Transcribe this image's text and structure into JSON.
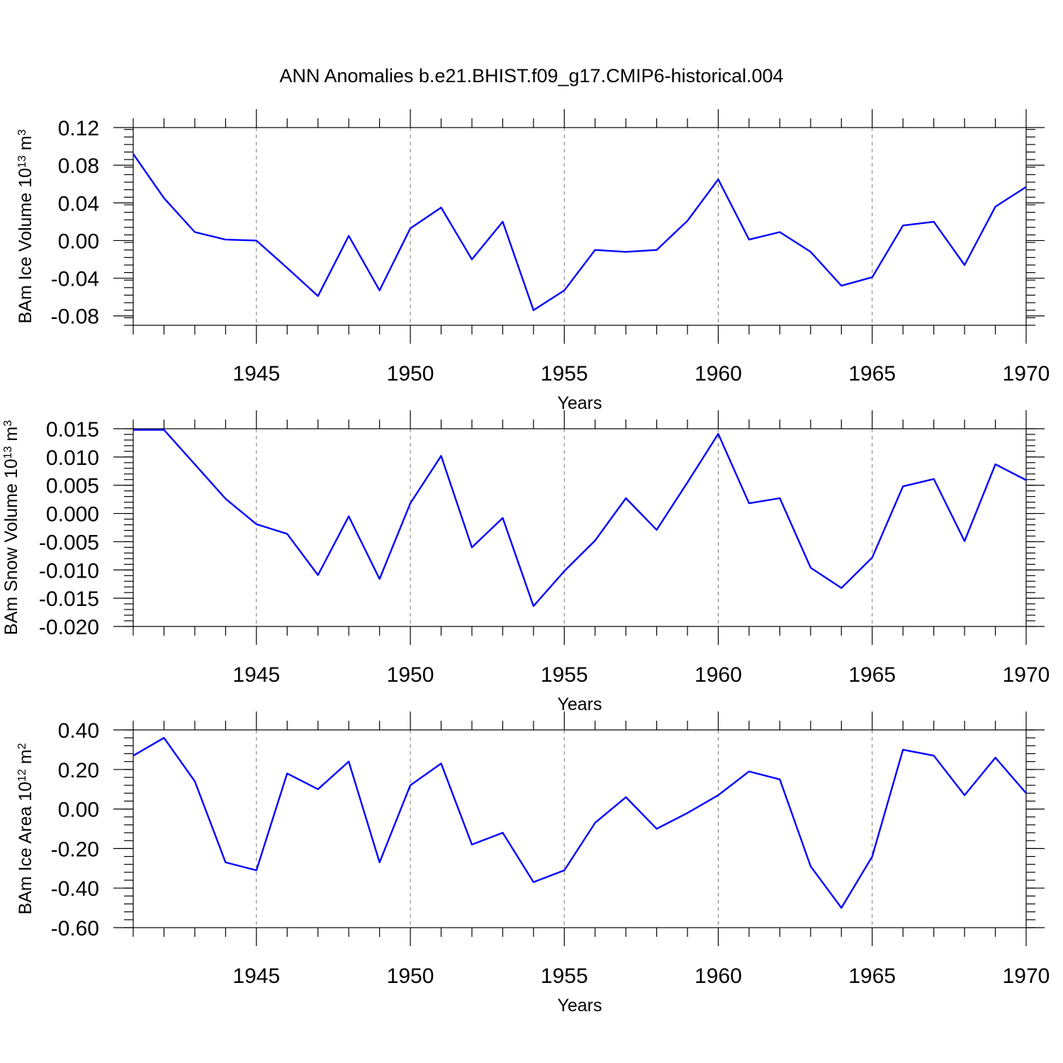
{
  "title": "ANN Anomalies b.e21.BHIST.f09_g17.CMIP6-historical.004",
  "colors": {
    "line": "#0000ff",
    "grid": "#777777",
    "axis": "#000000"
  },
  "chart_data": [
    {
      "type": "line",
      "ylabel": "BAm Ice Volume 10",
      "ylabel_exp": "13",
      "ylabel_unit": " m",
      "ylabel_unit_exp": "3",
      "xlabel": "Years",
      "xlim": [
        1941,
        1970
      ],
      "ylim": [
        -0.09,
        0.12
      ],
      "x_ticks": [
        1945,
        1950,
        1955,
        1960,
        1965,
        1970
      ],
      "y_ticks": [
        "0.12",
        "0.08",
        "0.04",
        "0.00",
        "-0.04",
        "-0.08"
      ],
      "y_tick_values": [
        0.12,
        0.08,
        0.04,
        0.0,
        -0.04,
        -0.08
      ],
      "y_minor_step": 0.008,
      "grid": "vertical dashed at major x ticks",
      "x": [
        1941,
        1942,
        1943,
        1944,
        1945,
        1946,
        1947,
        1948,
        1949,
        1950,
        1951,
        1952,
        1953,
        1954,
        1955,
        1956,
        1957,
        1958,
        1959,
        1960,
        1961,
        1962,
        1963,
        1964,
        1965,
        1966,
        1967,
        1968,
        1969,
        1970
      ],
      "values": [
        0.092,
        0.045,
        0.009,
        0.001,
        0.0,
        -0.029,
        -0.059,
        0.005,
        -0.053,
        0.013,
        0.035,
        -0.02,
        0.02,
        -0.074,
        -0.053,
        -0.01,
        -0.012,
        -0.01,
        0.021,
        0.065,
        0.001,
        0.009,
        -0.012,
        -0.048,
        -0.039,
        0.016,
        0.02,
        -0.026,
        0.036,
        0.057
      ]
    },
    {
      "type": "line",
      "ylabel": "BAm Snow Volume 10",
      "ylabel_exp": "13",
      "ylabel_unit": " m",
      "ylabel_unit_exp": "3",
      "xlabel": "Years",
      "xlim": [
        1941,
        1970
      ],
      "ylim": [
        -0.02,
        0.015
      ],
      "x_ticks": [
        1945,
        1950,
        1955,
        1960,
        1965,
        1970
      ],
      "y_ticks": [
        "0.015",
        "0.010",
        "0.005",
        "0.000",
        "-0.005",
        "-0.010",
        "-0.015",
        "-0.020"
      ],
      "y_tick_values": [
        0.015,
        0.01,
        0.005,
        0.0,
        -0.005,
        -0.01,
        -0.015,
        -0.02
      ],
      "y_minor_step": 0.001,
      "grid": "vertical dashed at major x ticks",
      "x": [
        1941,
        1942,
        1943,
        1944,
        1945,
        1946,
        1947,
        1948,
        1949,
        1950,
        1951,
        1952,
        1953,
        1954,
        1955,
        1956,
        1957,
        1958,
        1959,
        1960,
        1961,
        1962,
        1963,
        1964,
        1965,
        1966,
        1967,
        1968,
        1969,
        1970
      ],
      "values": [
        0.0148,
        0.0148,
        0.0087,
        0.0026,
        -0.0019,
        -0.0036,
        -0.0109,
        -0.0005,
        -0.0116,
        0.0018,
        0.0102,
        -0.006,
        -0.0008,
        -0.0164,
        -0.0102,
        -0.0048,
        0.0027,
        -0.0029,
        0.0055,
        0.0141,
        0.0018,
        0.0027,
        -0.0096,
        -0.0132,
        -0.0078,
        0.0048,
        0.0061,
        -0.0049,
        0.0087,
        0.0059
      ]
    },
    {
      "type": "line",
      "ylabel": "BAm Ice Area 10",
      "ylabel_exp": "12",
      "ylabel_unit": " m",
      "ylabel_unit_exp": "2",
      "xlabel": "Years",
      "xlim": [
        1941,
        1970
      ],
      "ylim": [
        -0.6,
        0.4
      ],
      "x_ticks": [
        1945,
        1950,
        1955,
        1960,
        1965,
        1970
      ],
      "y_ticks": [
        "0.40",
        "0.20",
        "0.00",
        "-0.20",
        "-0.40",
        "-0.60"
      ],
      "y_tick_values": [
        0.4,
        0.2,
        0.0,
        -0.2,
        -0.4,
        -0.6
      ],
      "y_minor_step": 0.04,
      "grid": "vertical dashed at major x ticks",
      "x": [
        1941,
        1942,
        1943,
        1944,
        1945,
        1946,
        1947,
        1948,
        1949,
        1950,
        1951,
        1952,
        1953,
        1954,
        1955,
        1956,
        1957,
        1958,
        1959,
        1960,
        1961,
        1962,
        1963,
        1964,
        1965,
        1966,
        1967,
        1968,
        1969,
        1970
      ],
      "values": [
        0.27,
        0.36,
        0.14,
        -0.27,
        -0.31,
        0.18,
        0.1,
        0.24,
        -0.27,
        0.12,
        0.23,
        -0.18,
        -0.12,
        -0.37,
        -0.31,
        -0.07,
        0.06,
        -0.1,
        -0.02,
        0.07,
        0.19,
        0.15,
        -0.29,
        -0.5,
        -0.24,
        0.3,
        0.27,
        0.07,
        0.26,
        0.08
      ]
    }
  ]
}
